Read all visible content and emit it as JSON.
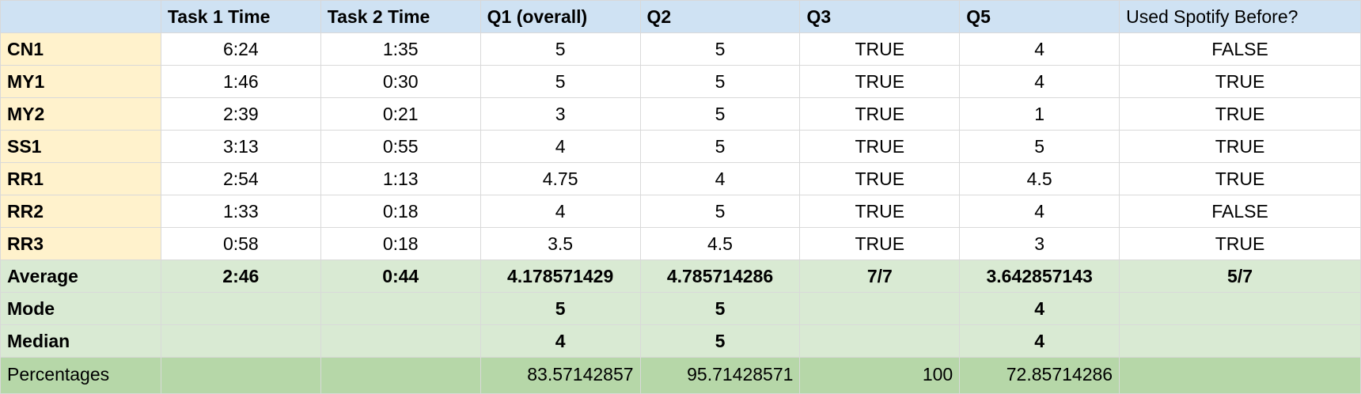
{
  "header": {
    "corner": "",
    "columns": [
      "Task 1 Time",
      "Task 2 Time",
      "Q1 (overall)",
      "Q2",
      "Q3",
      "Q5",
      "Used Spotify Before?"
    ]
  },
  "rows": [
    {
      "id": "CN1",
      "values": [
        "6:24",
        "1:35",
        "5",
        "5",
        "TRUE",
        "4",
        "FALSE"
      ]
    },
    {
      "id": "MY1",
      "values": [
        "1:46",
        "0:30",
        "5",
        "5",
        "TRUE",
        "4",
        "TRUE"
      ]
    },
    {
      "id": "MY2",
      "values": [
        "2:39",
        "0:21",
        "3",
        "5",
        "TRUE",
        "1",
        "TRUE"
      ]
    },
    {
      "id": "SS1",
      "values": [
        "3:13",
        "0:55",
        "4",
        "5",
        "TRUE",
        "5",
        "TRUE"
      ]
    },
    {
      "id": "RR1",
      "values": [
        "2:54",
        "1:13",
        "4.75",
        "4",
        "TRUE",
        "4.5",
        "TRUE"
      ]
    },
    {
      "id": "RR2",
      "values": [
        "1:33",
        "0:18",
        "4",
        "5",
        "TRUE",
        "4",
        "FALSE"
      ]
    },
    {
      "id": "RR3",
      "values": [
        "0:58",
        "0:18",
        "3.5",
        "4.5",
        "TRUE",
        "3",
        "TRUE"
      ]
    }
  ],
  "summary": [
    {
      "label": "Average",
      "values": [
        "2:46",
        "0:44",
        "4.178571429",
        "4.785714286",
        "7/7",
        "3.642857143",
        "5/7"
      ]
    },
    {
      "label": "Mode",
      "values": [
        "",
        "",
        "5",
        "5",
        "",
        "4",
        ""
      ]
    },
    {
      "label": "Median",
      "values": [
        "",
        "",
        "4",
        "5",
        "",
        "4",
        ""
      ]
    }
  ],
  "percentages": {
    "label": "Percentages",
    "values": [
      "",
      "",
      "83.57142857",
      "95.71428571",
      "100",
      "72.85714286",
      ""
    ]
  },
  "colors": {
    "header_bg": "#cfe2f3",
    "row_label_bg": "#fff2cc",
    "summary_bg": "#d9ead3",
    "percent_bg": "#b6d7a8",
    "grid": "#d9d9d9"
  }
}
